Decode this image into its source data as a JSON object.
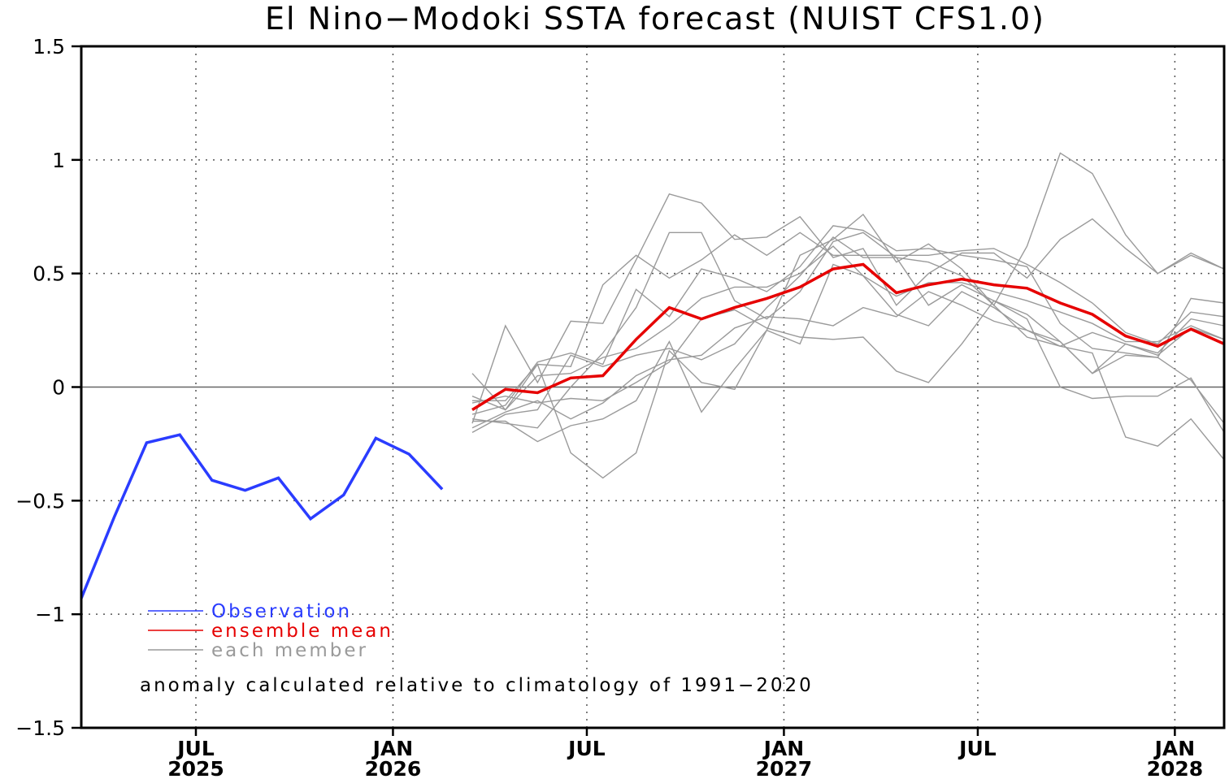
{
  "chart_data": {
    "type": "line",
    "title": "El Nino−Modoki SSTA forecast (NUIST CFS1.0)",
    "xlabel": "",
    "ylabel": "",
    "ylim": [
      -1.5,
      1.5
    ],
    "xlim": [
      "2025-03-16",
      "2028-02-16"
    ],
    "y_ticks": [
      {
        "value": 1.5,
        "label": "1.5"
      },
      {
        "value": 1,
        "label": "1"
      },
      {
        "value": 0.5,
        "label": "0.5"
      },
      {
        "value": 0,
        "label": "0"
      },
      {
        "value": -0.5,
        "label": "−0.5"
      },
      {
        "value": -1,
        "label": "−1"
      },
      {
        "value": -1.5,
        "label": "−1.5"
      }
    ],
    "x_ticks": [
      {
        "date": "2025-07-01",
        "month": "JUL",
        "year": "2025"
      },
      {
        "date": "2026-01-01",
        "month": "JAN",
        "year": "2026"
      },
      {
        "date": "2026-07-01",
        "month": "JUL",
        "year": ""
      },
      {
        "date": "2027-01-01",
        "month": "JAN",
        "year": "2027"
      },
      {
        "date": "2027-07-01",
        "month": "JUL",
        "year": ""
      },
      {
        "date": "2028-01-01",
        "month": "JAN",
        "year": "2028"
      }
    ],
    "grid": true,
    "legend_position": "bottom-left",
    "series": [
      {
        "name": "Observation",
        "role": "observation",
        "color": "#2a3cff",
        "x": [
          "2025-03-16",
          "2025-04-16",
          "2025-05-16",
          "2025-06-16",
          "2025-07-16",
          "2025-08-16",
          "2025-09-16",
          "2025-10-16",
          "2025-11-16",
          "2025-12-16",
          "2026-01-16",
          "2026-02-16"
        ],
        "y": [
          -0.93,
          -0.57,
          -0.245,
          -0.21,
          -0.41,
          -0.455,
          -0.4,
          -0.58,
          -0.475,
          -0.225,
          -0.295,
          -0.45
        ]
      },
      {
        "name": "ensemble mean",
        "role": "mean",
        "color": "#e60000",
        "x": [
          "2026-03-16",
          "2026-04-16",
          "2026-05-16",
          "2026-06-16",
          "2026-07-16",
          "2026-08-16",
          "2026-09-16",
          "2026-10-16",
          "2026-11-16",
          "2026-12-16",
          "2027-01-16",
          "2027-02-16",
          "2027-03-16",
          "2027-04-16",
          "2027-05-16",
          "2027-06-16",
          "2027-07-16",
          "2027-08-16",
          "2027-09-16",
          "2027-10-16",
          "2027-11-16",
          "2027-12-16",
          "2028-01-16",
          "2028-02-16"
        ],
        "y": [
          -0.1,
          -0.01,
          -0.025,
          0.04,
          0.05,
          0.21,
          0.35,
          0.3,
          0.35,
          0.39,
          0.44,
          0.52,
          0.54,
          0.415,
          0.45,
          0.475,
          0.45,
          0.435,
          0.37,
          0.32,
          0.225,
          0.18,
          0.255,
          0.19
        ]
      }
    ],
    "members": {
      "name": "each member",
      "color": "#9a9a9a",
      "x": [
        "2026-03-16",
        "2026-04-16",
        "2026-05-16",
        "2026-06-16",
        "2026-07-16",
        "2026-08-16",
        "2026-09-16",
        "2026-10-16",
        "2026-11-16",
        "2026-12-16",
        "2027-01-16",
        "2027-02-16",
        "2027-03-16",
        "2027-04-16",
        "2027-05-16",
        "2027-06-16",
        "2027-07-16",
        "2027-08-16",
        "2027-09-16",
        "2027-10-16",
        "2027-11-16",
        "2027-12-16",
        "2028-01-16",
        "2028-02-16"
      ],
      "values": [
        [
          0.06,
          -0.1,
          0.1,
          -0.29,
          -0.4,
          -0.29,
          0.16,
          0.02,
          -0.01,
          0.25,
          0.58,
          0.65,
          0.76,
          0.55,
          0.63,
          0.52,
          0.36,
          0.62,
          1.03,
          0.94,
          0.67,
          0.5,
          0.58,
          0.52
        ],
        [
          -0.16,
          0.27,
          0.02,
          0.29,
          0.28,
          0.56,
          0.85,
          0.81,
          0.65,
          0.66,
          0.75,
          0.57,
          0.61,
          0.36,
          0.5,
          0.59,
          0.59,
          0.48,
          0.65,
          0.74,
          0.61,
          0.5,
          0.59,
          0.52
        ],
        [
          -0.06,
          -0.06,
          0.1,
          0.09,
          0.45,
          0.58,
          0.48,
          0.56,
          0.67,
          0.58,
          0.68,
          0.58,
          0.58,
          0.58,
          0.58,
          0.6,
          0.61,
          0.54,
          0.46,
          0.37,
          0.24,
          0.19,
          0.33,
          0.31
        ],
        [
          -0.12,
          -0.08,
          0.11,
          0.15,
          0.1,
          0.43,
          0.31,
          0.52,
          0.48,
          0.42,
          0.53,
          0.71,
          0.69,
          0.6,
          0.61,
          0.58,
          0.56,
          0.53,
          0.28,
          0.17,
          0.15,
          0.13,
          0.39,
          0.37
        ],
        [
          -0.14,
          -0.16,
          -0.18,
          0.0,
          0.15,
          0.35,
          0.68,
          0.68,
          0.38,
          0.3,
          0.42,
          0.64,
          0.68,
          0.57,
          0.55,
          0.49,
          0.36,
          0.22,
          0.18,
          0.24,
          0.19,
          0.15,
          0.3,
          0.27
        ],
        [
          -0.2,
          -0.12,
          -0.1,
          0.14,
          0.09,
          0.14,
          0.17,
          0.12,
          0.19,
          0.35,
          0.49,
          0.66,
          0.57,
          0.57,
          0.36,
          0.45,
          0.38,
          0.32,
          0.2,
          0.06,
          0.19,
          0.14,
          0.26,
          0.21
        ],
        [
          -0.15,
          -0.15,
          -0.24,
          -0.17,
          -0.14,
          -0.06,
          0.2,
          -0.11,
          0.08,
          0.25,
          0.19,
          0.54,
          0.49,
          0.32,
          0.27,
          0.42,
          0.35,
          0.25,
          0.2,
          0.06,
          0.14,
          0.13,
          0.03,
          -0.16
        ],
        [
          -0.18,
          -0.11,
          -0.06,
          -0.14,
          -0.07,
          0.05,
          0.12,
          0.14,
          0.26,
          0.31,
          0.3,
          0.27,
          0.35,
          0.31,
          0.42,
          0.36,
          0.29,
          0.25,
          0.18,
          0.15,
          -0.22,
          -0.26,
          -0.14,
          -0.32
        ],
        [
          -0.07,
          -0.04,
          -0.07,
          -0.05,
          -0.06,
          0.02,
          0.11,
          0.3,
          0.34,
          0.26,
          0.22,
          0.21,
          0.22,
          0.07,
          0.02,
          0.19,
          0.38,
          0.3,
          0.0,
          -0.05,
          -0.04,
          -0.04,
          0.04,
          -0.2
        ],
        [
          -0.04,
          -0.1,
          0.05,
          0.06,
          0.13,
          0.17,
          0.27,
          0.39,
          0.44,
          0.44,
          0.5,
          0.62,
          0.49,
          0.4,
          0.46,
          0.46,
          0.42,
          0.38,
          0.33,
          0.28,
          0.2,
          0.2,
          0.27,
          0.21
        ]
      ]
    },
    "legend": [
      {
        "label": "Observation",
        "color": "#2a3cff"
      },
      {
        "label": "ensemble mean",
        "color": "#e60000"
      },
      {
        "label": "each member",
        "color": "#9a9a9a"
      }
    ],
    "annotation": "anomaly calculated relative to climatology of 1991−2020"
  }
}
